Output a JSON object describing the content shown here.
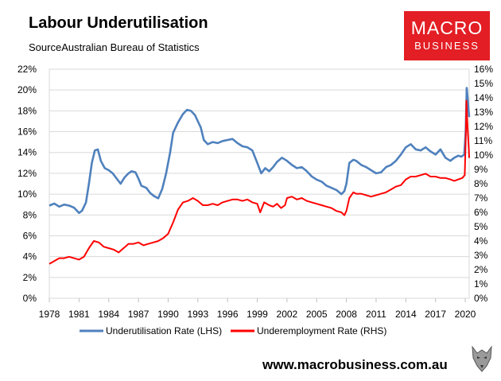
{
  "chart_data": {
    "type": "line",
    "title": "Labour Underutilisation",
    "subtitle": "SourceAustralian Bureau of Statistics",
    "x_ticks": [
      "1978",
      "1981",
      "1984",
      "1987",
      "1990",
      "1993",
      "1996",
      "1999",
      "2002",
      "2005",
      "2008",
      "2011",
      "2014",
      "2017",
      "2020"
    ],
    "x_range": [
      1978,
      2020.4
    ],
    "y_left": {
      "range": [
        0,
        22
      ],
      "ticks": [
        "0%",
        "2%",
        "4%",
        "6%",
        "8%",
        "10%",
        "12%",
        "14%",
        "16%",
        "18%",
        "20%",
        "22%"
      ]
    },
    "y_right": {
      "range": [
        0,
        16
      ],
      "ticks": [
        "0%",
        "1%",
        "2%",
        "3%",
        "4%",
        "5%",
        "6%",
        "7%",
        "8%",
        "9%",
        "10%",
        "11%",
        "12%",
        "13%",
        "14%",
        "15%",
        "16%"
      ]
    },
    "grid": "horizontal",
    "legend": "bottom",
    "series": [
      {
        "name": "Underutilisation Rate (LHS)",
        "axis": "left",
        "color": "#4f81bd",
        "points": [
          [
            1978.0,
            8.9
          ],
          [
            1978.5,
            9.1
          ],
          [
            1979.0,
            8.8
          ],
          [
            1979.5,
            9.0
          ],
          [
            1980.0,
            8.9
          ],
          [
            1980.5,
            8.7
          ],
          [
            1981.0,
            8.2
          ],
          [
            1981.3,
            8.4
          ],
          [
            1981.7,
            9.2
          ],
          [
            1982.0,
            11.0
          ],
          [
            1982.3,
            13.0
          ],
          [
            1982.6,
            14.2
          ],
          [
            1982.9,
            14.3
          ],
          [
            1983.2,
            13.2
          ],
          [
            1983.6,
            12.5
          ],
          [
            1984.0,
            12.3
          ],
          [
            1984.4,
            12.0
          ],
          [
            1984.8,
            11.5
          ],
          [
            1985.2,
            11.0
          ],
          [
            1985.6,
            11.6
          ],
          [
            1986.0,
            12.0
          ],
          [
            1986.3,
            12.2
          ],
          [
            1986.7,
            12.1
          ],
          [
            1987.0,
            11.5
          ],
          [
            1987.3,
            10.8
          ],
          [
            1987.8,
            10.6
          ],
          [
            1988.2,
            10.1
          ],
          [
            1988.6,
            9.8
          ],
          [
            1989.0,
            9.6
          ],
          [
            1989.4,
            10.5
          ],
          [
            1989.8,
            12.0
          ],
          [
            1990.2,
            14.0
          ],
          [
            1990.5,
            15.9
          ],
          [
            1991.0,
            16.9
          ],
          [
            1991.5,
            17.7
          ],
          [
            1991.9,
            18.1
          ],
          [
            1992.3,
            18.0
          ],
          [
            1992.7,
            17.6
          ],
          [
            1993.0,
            17.0
          ],
          [
            1993.3,
            16.4
          ],
          [
            1993.6,
            15.2
          ],
          [
            1994.0,
            14.8
          ],
          [
            1994.5,
            15.0
          ],
          [
            1995.0,
            14.9
          ],
          [
            1995.5,
            15.1
          ],
          [
            1996.0,
            15.2
          ],
          [
            1996.5,
            15.3
          ],
          [
            1997.0,
            14.9
          ],
          [
            1997.5,
            14.6
          ],
          [
            1998.0,
            14.5
          ],
          [
            1998.5,
            14.2
          ],
          [
            1999.0,
            13.0
          ],
          [
            1999.4,
            12.0
          ],
          [
            1999.8,
            12.5
          ],
          [
            2000.2,
            12.2
          ],
          [
            2000.6,
            12.6
          ],
          [
            2001.0,
            13.1
          ],
          [
            2001.5,
            13.5
          ],
          [
            2002.0,
            13.2
          ],
          [
            2002.5,
            12.8
          ],
          [
            2003.0,
            12.5
          ],
          [
            2003.5,
            12.6
          ],
          [
            2004.0,
            12.2
          ],
          [
            2004.5,
            11.7
          ],
          [
            2005.0,
            11.4
          ],
          [
            2005.5,
            11.2
          ],
          [
            2006.0,
            10.8
          ],
          [
            2006.5,
            10.6
          ],
          [
            2007.0,
            10.4
          ],
          [
            2007.5,
            10.0
          ],
          [
            2007.8,
            10.3
          ],
          [
            2008.0,
            11.0
          ],
          [
            2008.3,
            13.0
          ],
          [
            2008.7,
            13.3
          ],
          [
            2009.0,
            13.2
          ],
          [
            2009.5,
            12.8
          ],
          [
            2010.0,
            12.6
          ],
          [
            2010.5,
            12.3
          ],
          [
            2011.0,
            12.0
          ],
          [
            2011.5,
            12.1
          ],
          [
            2012.0,
            12.6
          ],
          [
            2012.5,
            12.8
          ],
          [
            2013.0,
            13.2
          ],
          [
            2013.5,
            13.8
          ],
          [
            2014.0,
            14.5
          ],
          [
            2014.5,
            14.8
          ],
          [
            2015.0,
            14.3
          ],
          [
            2015.5,
            14.2
          ],
          [
            2016.0,
            14.5
          ],
          [
            2016.5,
            14.1
          ],
          [
            2017.0,
            13.8
          ],
          [
            2017.5,
            14.3
          ],
          [
            2018.0,
            13.5
          ],
          [
            2018.5,
            13.2
          ],
          [
            2018.9,
            13.5
          ],
          [
            2019.3,
            13.7
          ],
          [
            2019.6,
            13.6
          ],
          [
            2019.9,
            13.8
          ],
          [
            2020.05,
            16.0
          ],
          [
            2020.15,
            20.2
          ],
          [
            2020.25,
            19.2
          ],
          [
            2020.33,
            18.2
          ],
          [
            2020.4,
            17.4
          ]
        ]
      },
      {
        "name": "Underemployment Rate (RHS)",
        "axis": "right",
        "color": "#ff0000",
        "points": [
          [
            1978.0,
            2.4
          ],
          [
            1978.5,
            2.6
          ],
          [
            1979.0,
            2.8
          ],
          [
            1979.5,
            2.8
          ],
          [
            1980.0,
            2.9
          ],
          [
            1980.5,
            2.8
          ],
          [
            1981.0,
            2.7
          ],
          [
            1981.5,
            2.9
          ],
          [
            1982.0,
            3.5
          ],
          [
            1982.5,
            4.0
          ],
          [
            1983.0,
            3.9
          ],
          [
            1983.5,
            3.6
          ],
          [
            1984.0,
            3.5
          ],
          [
            1984.5,
            3.4
          ],
          [
            1985.0,
            3.2
          ],
          [
            1985.5,
            3.5
          ],
          [
            1986.0,
            3.8
          ],
          [
            1986.5,
            3.8
          ],
          [
            1987.0,
            3.9
          ],
          [
            1987.5,
            3.7
          ],
          [
            1988.0,
            3.8
          ],
          [
            1988.5,
            3.9
          ],
          [
            1989.0,
            4.0
          ],
          [
            1989.5,
            4.2
          ],
          [
            1990.0,
            4.5
          ],
          [
            1990.5,
            5.3
          ],
          [
            1991.0,
            6.2
          ],
          [
            1991.5,
            6.7
          ],
          [
            1992.0,
            6.8
          ],
          [
            1992.5,
            7.0
          ],
          [
            1993.0,
            6.8
          ],
          [
            1993.5,
            6.5
          ],
          [
            1994.0,
            6.5
          ],
          [
            1994.5,
            6.6
          ],
          [
            1995.0,
            6.5
          ],
          [
            1995.5,
            6.7
          ],
          [
            1996.0,
            6.8
          ],
          [
            1996.5,
            6.9
          ],
          [
            1997.0,
            6.9
          ],
          [
            1997.5,
            6.8
          ],
          [
            1998.0,
            6.9
          ],
          [
            1998.5,
            6.7
          ],
          [
            1999.0,
            6.6
          ],
          [
            1999.3,
            6.0
          ],
          [
            1999.7,
            6.7
          ],
          [
            2000.2,
            6.5
          ],
          [
            2000.6,
            6.4
          ],
          [
            2001.0,
            6.6
          ],
          [
            2001.4,
            6.3
          ],
          [
            2001.8,
            6.5
          ],
          [
            2002.0,
            7.0
          ],
          [
            2002.5,
            7.1
          ],
          [
            2003.0,
            6.9
          ],
          [
            2003.5,
            7.0
          ],
          [
            2004.0,
            6.8
          ],
          [
            2004.5,
            6.7
          ],
          [
            2005.0,
            6.6
          ],
          [
            2005.5,
            6.5
          ],
          [
            2006.0,
            6.4
          ],
          [
            2006.5,
            6.3
          ],
          [
            2007.0,
            6.1
          ],
          [
            2007.5,
            6.0
          ],
          [
            2007.8,
            5.8
          ],
          [
            2008.0,
            6.1
          ],
          [
            2008.3,
            7.0
          ],
          [
            2008.7,
            7.4
          ],
          [
            2009.0,
            7.3
          ],
          [
            2009.5,
            7.3
          ],
          [
            2010.0,
            7.2
          ],
          [
            2010.5,
            7.1
          ],
          [
            2011.0,
            7.2
          ],
          [
            2011.5,
            7.3
          ],
          [
            2012.0,
            7.4
          ],
          [
            2012.5,
            7.6
          ],
          [
            2013.0,
            7.8
          ],
          [
            2013.5,
            7.9
          ],
          [
            2014.0,
            8.3
          ],
          [
            2014.5,
            8.5
          ],
          [
            2015.0,
            8.5
          ],
          [
            2015.5,
            8.6
          ],
          [
            2016.0,
            8.7
          ],
          [
            2016.5,
            8.5
          ],
          [
            2017.0,
            8.5
          ],
          [
            2017.5,
            8.4
          ],
          [
            2018.0,
            8.4
          ],
          [
            2018.5,
            8.3
          ],
          [
            2018.9,
            8.2
          ],
          [
            2019.3,
            8.3
          ],
          [
            2019.7,
            8.4
          ],
          [
            2019.95,
            8.6
          ],
          [
            2020.05,
            11.0
          ],
          [
            2020.12,
            13.8
          ],
          [
            2020.2,
            12.5
          ],
          [
            2020.28,
            11.4
          ],
          [
            2020.36,
            10.5
          ],
          [
            2020.4,
            9.8
          ]
        ]
      }
    ]
  },
  "logo": {
    "line1": "MACRO",
    "line2": "BUSINESS"
  },
  "footer": {
    "url": "www.macrobusiness.com.au"
  }
}
